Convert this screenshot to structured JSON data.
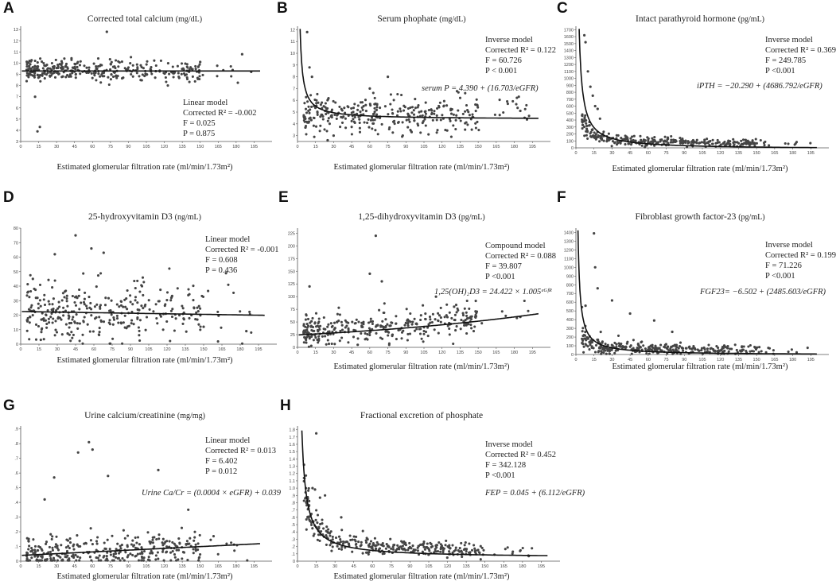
{
  "chart_data": [
    {
      "panel_label": "A",
      "type": "scatter",
      "title": "Corrected total calcium",
      "unit": "(mg/dL)",
      "xlabel": "Estimated glomerular filtration rate (ml/min/1.73m²)",
      "x_ticks": [
        "0",
        "15",
        "30",
        "45",
        "60",
        "75",
        "90",
        "105",
        "120",
        "135",
        "150",
        "165",
        "180",
        "195"
      ],
      "y_ticks": [
        "3",
        "4",
        "5",
        "6",
        "7",
        "8",
        "9",
        "10",
        "11",
        "12",
        "13"
      ],
      "xlim": [
        0,
        210
      ],
      "ylim": [
        3,
        13.3
      ],
      "stats": [
        "Linear model",
        "Corrected R² = -0.002",
        "F = 0.025",
        "P = 0.875"
      ],
      "equation": "",
      "fit": {
        "model": "linear",
        "a": 9.3,
        "b": 0.0
      },
      "cloud": {
        "mean": 9.35,
        "sd": 0.5,
        "decay": 0,
        "seed": 11
      },
      "points": [
        [
          12,
          7.0
        ],
        [
          14,
          3.9
        ],
        [
          16,
          4.3
        ],
        [
          72,
          12.8
        ],
        [
          185,
          10.8
        ],
        [
          150,
          10.1
        ],
        [
          5,
          9.4
        ],
        [
          8,
          9.9
        ]
      ]
    },
    {
      "panel_label": "B",
      "type": "scatter",
      "title": "Serum phophate",
      "unit": "(mg/dL)",
      "xlabel": "Estimated glomerular filtration rate (ml/min/1.73m²)",
      "x_ticks": [
        "0",
        "15",
        "30",
        "45",
        "60",
        "75",
        "90",
        "105",
        "120",
        "135",
        "150",
        "165",
        "180",
        "195"
      ],
      "y_ticks": [
        "3",
        "4",
        "5",
        "6",
        "7",
        "8",
        "9",
        "10",
        "11",
        "12"
      ],
      "xlim": [
        0,
        210
      ],
      "ylim": [
        2.5,
        12.3
      ],
      "stats": [
        "Inverse model",
        "Corrected R² = 0.122",
        "F = 60.726",
        "P < 0.001"
      ],
      "equation": "serum P = 4.390 + (16.703/eGFR)",
      "fit": {
        "model": "inverse",
        "a": 4.39,
        "b": 16.703
      },
      "cloud": {
        "mean": 4.8,
        "sd": 0.75,
        "decay": 0,
        "seed": 23
      },
      "points": [
        [
          8,
          11.8
        ],
        [
          10,
          8.8
        ],
        [
          12,
          8.0
        ],
        [
          185,
          5.1
        ],
        [
          60,
          7.0
        ],
        [
          25,
          2.6
        ],
        [
          30,
          3.0
        ],
        [
          75,
          8.0
        ]
      ]
    },
    {
      "panel_label": "C",
      "type": "scatter",
      "title": "Intact parathyroid hormone",
      "unit": "(pg/mL)",
      "xlabel": "Estimated glomerular filtration rate (ml/min/1.73m²)",
      "x_ticks": [
        "0",
        "15",
        "30",
        "45",
        "60",
        "75",
        "90",
        "105",
        "120",
        "135",
        "150",
        "165",
        "180",
        "195"
      ],
      "y_ticks": [
        "0",
        "100",
        "200",
        "300",
        "400",
        "500",
        "600",
        "700",
        "800",
        "900",
        "1000",
        "1100",
        "1200",
        "1300",
        "1400",
        "1500",
        "1600",
        "1700"
      ],
      "xlim": [
        0,
        210
      ],
      "ylim": [
        0,
        1750
      ],
      "stats": [
        "Inverse model",
        "Corrected R² = 0.369",
        "F = 249.785",
        "P <0.001"
      ],
      "equation": "iPTH = −20.290 + (4686.792/eGFR)",
      "fit": {
        "model": "inverse",
        "a": -20.29,
        "b": 4686.792
      },
      "cloud": {
        "mean": 60,
        "sd": 40,
        "decay": 1800,
        "seed": 37
      },
      "points": [
        [
          7,
          1620
        ],
        [
          8,
          1520
        ],
        [
          10,
          1100
        ],
        [
          12,
          880
        ],
        [
          14,
          750
        ],
        [
          16,
          600
        ],
        [
          18,
          560
        ],
        [
          20,
          420
        ]
      ]
    },
    {
      "panel_label": "D",
      "type": "scatter",
      "title": "25-hydroxyvitamin D3",
      "unit": "(ng/mL)",
      "xlabel": "Estimated glomerular filtration rate (ml/min/1.73m²)",
      "x_ticks": [
        "0",
        "15",
        "30",
        "45",
        "60",
        "75",
        "90",
        "105",
        "120",
        "135",
        "150",
        "165",
        "180",
        "195"
      ],
      "y_ticks": [
        "0",
        "10",
        "20",
        "30",
        "40",
        "50",
        "60",
        "70",
        "80"
      ],
      "xlim": [
        0,
        210
      ],
      "ylim": [
        0,
        80
      ],
      "stats": [
        "Linear model",
        "Corrected R² = -0.001",
        "F = 0.608",
        "P = 0.436"
      ],
      "equation": "",
      "fit": {
        "model": "linear",
        "a": 22.5,
        "b": -0.013
      },
      "cloud": {
        "mean": 22,
        "sd": 11,
        "decay": 0,
        "seed": 53
      },
      "points": [
        [
          45,
          75
        ],
        [
          58,
          66
        ],
        [
          68,
          63
        ],
        [
          28,
          62
        ],
        [
          185,
          9
        ],
        [
          140,
          20
        ],
        [
          150,
          12
        ],
        [
          10,
          45
        ]
      ]
    },
    {
      "panel_label": "E",
      "type": "scatter",
      "title": "1,25-dihydroxyvitamin D3",
      "unit": "(pg/mL)",
      "xlabel": "Estimated glomerular filtration rate (ml/min/1.73m²)",
      "x_ticks": [
        "0",
        "15",
        "30",
        "45",
        "60",
        "75",
        "90",
        "105",
        "120",
        "135",
        "150",
        "165",
        "180",
        "195"
      ],
      "y_ticks": [
        "0",
        "25",
        "50",
        "75",
        "100",
        "125",
        "150",
        "175",
        "200",
        "225"
      ],
      "xlim": [
        0,
        210
      ],
      "ylim": [
        0,
        235
      ],
      "stats": [
        "Compound model",
        "Corrected R² = 0.088",
        "F = 39.807",
        "P <0.001"
      ],
      "equation": "1,25(OH)₂D3 = 24.422 × 1.005ᵉᴳᶠᴿ",
      "fit": {
        "model": "compound",
        "a": 24.422,
        "b": 1.005
      },
      "cloud": {
        "mean": 33,
        "sd": 15,
        "decay": 0,
        "seed": 71
      },
      "points": [
        [
          65,
          220
        ],
        [
          60,
          145
        ],
        [
          70,
          130
        ],
        [
          10,
          120
        ],
        [
          185,
          60
        ],
        [
          130,
          80
        ],
        [
          115,
          100
        ],
        [
          50,
          5
        ]
      ]
    },
    {
      "panel_label": "F",
      "type": "scatter",
      "title": "Fibroblast growth factor-23",
      "unit": "(pg/mL)",
      "xlabel": "Estimated glomerular filtration rate (ml/min/1.73m²)",
      "x_ticks": [
        "0",
        "15",
        "30",
        "45",
        "60",
        "75",
        "90",
        "105",
        "120",
        "135",
        "150",
        "165",
        "180",
        "195"
      ],
      "y_ticks": [
        "0",
        "100",
        "200",
        "300",
        "400",
        "500",
        "600",
        "700",
        "800",
        "900",
        "1000",
        "1100",
        "1200",
        "1300",
        "1400"
      ],
      "xlim": [
        0,
        210
      ],
      "ylim": [
        0,
        1450
      ],
      "stats": [
        "Inverse model",
        "Corrected R² = 0.199",
        "F = 71.226",
        "P <0.001"
      ],
      "equation": "FGF23= −6.502 + (2485.603/eGFR)",
      "fit": {
        "model": "inverse",
        "a": -6.502,
        "b": 2485.603
      },
      "cloud": {
        "mean": 50,
        "sd": 40,
        "decay": 900,
        "seed": 89
      },
      "points": [
        [
          15,
          1390
        ],
        [
          16,
          1000
        ],
        [
          18,
          760
        ],
        [
          30,
          620
        ],
        [
          45,
          470
        ],
        [
          65,
          390
        ],
        [
          80,
          260
        ],
        [
          8,
          560
        ]
      ]
    },
    {
      "panel_label": "G",
      "type": "scatter",
      "title": "Urine calcium/creatinine",
      "unit": "(mg/mg)",
      "xlabel": "Estimated glomerular filtration rate (ml/min/1.73m²)",
      "x_ticks": [
        "0",
        "15",
        "30",
        "45",
        "60",
        "75",
        "90",
        "105",
        "120",
        "135",
        "150",
        "165",
        "180",
        "195"
      ],
      "y_ticks": [
        "0",
        ".1",
        ".2",
        ".3",
        ".4",
        ".5",
        ".6",
        ".7",
        ".8",
        ".9"
      ],
      "xlim": [
        0,
        210
      ],
      "ylim": [
        0,
        0.92
      ],
      "stats": [
        "Linear model",
        "Corrected R² = 0.013",
        "F = 6.402",
        "P = 0.012"
      ],
      "equation": "Urine Ca/Cr = (0.0004 × eGFR) + 0.039",
      "fit": {
        "model": "linear",
        "a": 0.039,
        "b": 0.0004
      },
      "cloud": {
        "mean": 0.07,
        "sd": 0.06,
        "decay": 0,
        "seed": 97
      },
      "points": [
        [
          57,
          0.81
        ],
        [
          60,
          0.76
        ],
        [
          48,
          0.74
        ],
        [
          28,
          0.57
        ],
        [
          73,
          0.58
        ],
        [
          115,
          0.62
        ],
        [
          20,
          0.42
        ],
        [
          140,
          0.35
        ]
      ]
    },
    {
      "panel_label": "H",
      "type": "scatter",
      "title": "Fractional excretion of phosphate",
      "unit": "",
      "xlabel": "Estimated glomerular filtration rate (ml/min/1.73m²)",
      "x_ticks": [
        "0",
        "15",
        "30",
        "45",
        "60",
        "75",
        "90",
        "105",
        "120",
        "135",
        "150",
        "165",
        "180",
        "195"
      ],
      "y_ticks": [
        "0",
        ".1",
        ".2",
        ".3",
        ".4",
        ".5",
        ".6",
        ".7",
        ".8",
        ".9",
        "1.0",
        "1.1",
        "1.2",
        "1.3",
        "1.4",
        "1.5",
        "1.6",
        "1.7",
        "1.8"
      ],
      "xlim": [
        0,
        210
      ],
      "ylim": [
        0,
        1.85
      ],
      "stats": [
        "Inverse model",
        "Corrected R² = 0.452",
        "F = 342.128",
        "P <0.001"
      ],
      "equation": "FEP = 0.045 + (6.112/eGFR)",
      "fit": {
        "model": "inverse",
        "a": 0.045,
        "b": 6.112
      },
      "cloud": {
        "mean": 0.12,
        "sd": 0.07,
        "decay": 5.2,
        "seed": 131
      },
      "points": [
        [
          15,
          1.75
        ],
        [
          12,
          1.0
        ],
        [
          14,
          0.98
        ],
        [
          18,
          0.87
        ],
        [
          22,
          0.9
        ],
        [
          35,
          0.6
        ],
        [
          10,
          0.55
        ],
        [
          185,
          0.07
        ]
      ]
    }
  ]
}
